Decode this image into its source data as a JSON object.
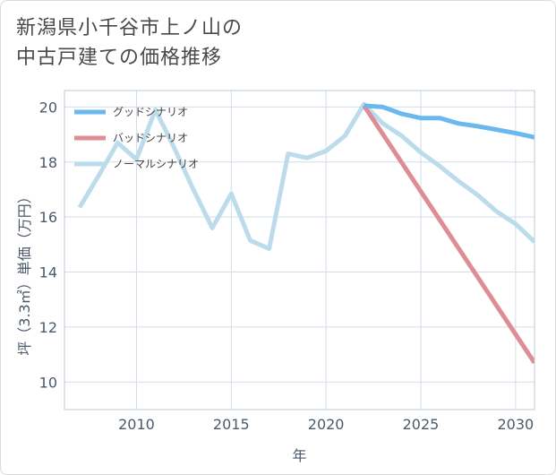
{
  "chart_data": {
    "type": "line",
    "title_lines": [
      "新潟県小千谷市上ノ山の",
      "中古戸建ての価格推移"
    ],
    "xlabel": "年",
    "ylabel": "坪（3.3㎡）単価（万円）",
    "xlim": [
      2006.2,
      2031
    ],
    "ylim": [
      9.0,
      20.6
    ],
    "xticks": [
      2010,
      2015,
      2020,
      2025,
      2030
    ],
    "xtick_labels": [
      "2010",
      "2015",
      "2020",
      "2025",
      "2030"
    ],
    "yticks": [
      10,
      12,
      14,
      16,
      18,
      20
    ],
    "ytick_labels": [
      "10",
      "12",
      "14",
      "16",
      "18",
      "20"
    ],
    "grid": true,
    "legend_position": "top-left",
    "series": [
      {
        "name": "グッドシナリオ",
        "color": "#6ab8ee",
        "x": [
          2022,
          2023,
          2024,
          2025,
          2026,
          2027,
          2028,
          2029,
          2030,
          2031
        ],
        "y": [
          20.05,
          20.0,
          19.75,
          19.6,
          19.6,
          19.4,
          19.3,
          19.18,
          19.05,
          18.9
        ]
      },
      {
        "name": "バッドシナリオ",
        "color": "#de8d95",
        "x": [
          2022,
          2031
        ],
        "y": [
          20.05,
          10.7
        ]
      },
      {
        "name": "ノーマルシナリオ",
        "color": "#bcdcec",
        "x": [
          2007,
          2008,
          2009,
          2010,
          2011,
          2012,
          2013,
          2014,
          2015,
          2016,
          2017,
          2018,
          2019,
          2020,
          2021,
          2022,
          2023,
          2024,
          2025,
          2026,
          2027,
          2028,
          2029,
          2030,
          2031
        ],
        "y": [
          16.35,
          17.5,
          18.7,
          18.1,
          19.9,
          18.5,
          17.0,
          15.6,
          16.85,
          15.15,
          14.85,
          18.3,
          18.15,
          18.4,
          18.95,
          20.1,
          19.4,
          18.95,
          18.35,
          17.85,
          17.3,
          16.8,
          16.2,
          15.75,
          15.1
        ]
      }
    ]
  }
}
